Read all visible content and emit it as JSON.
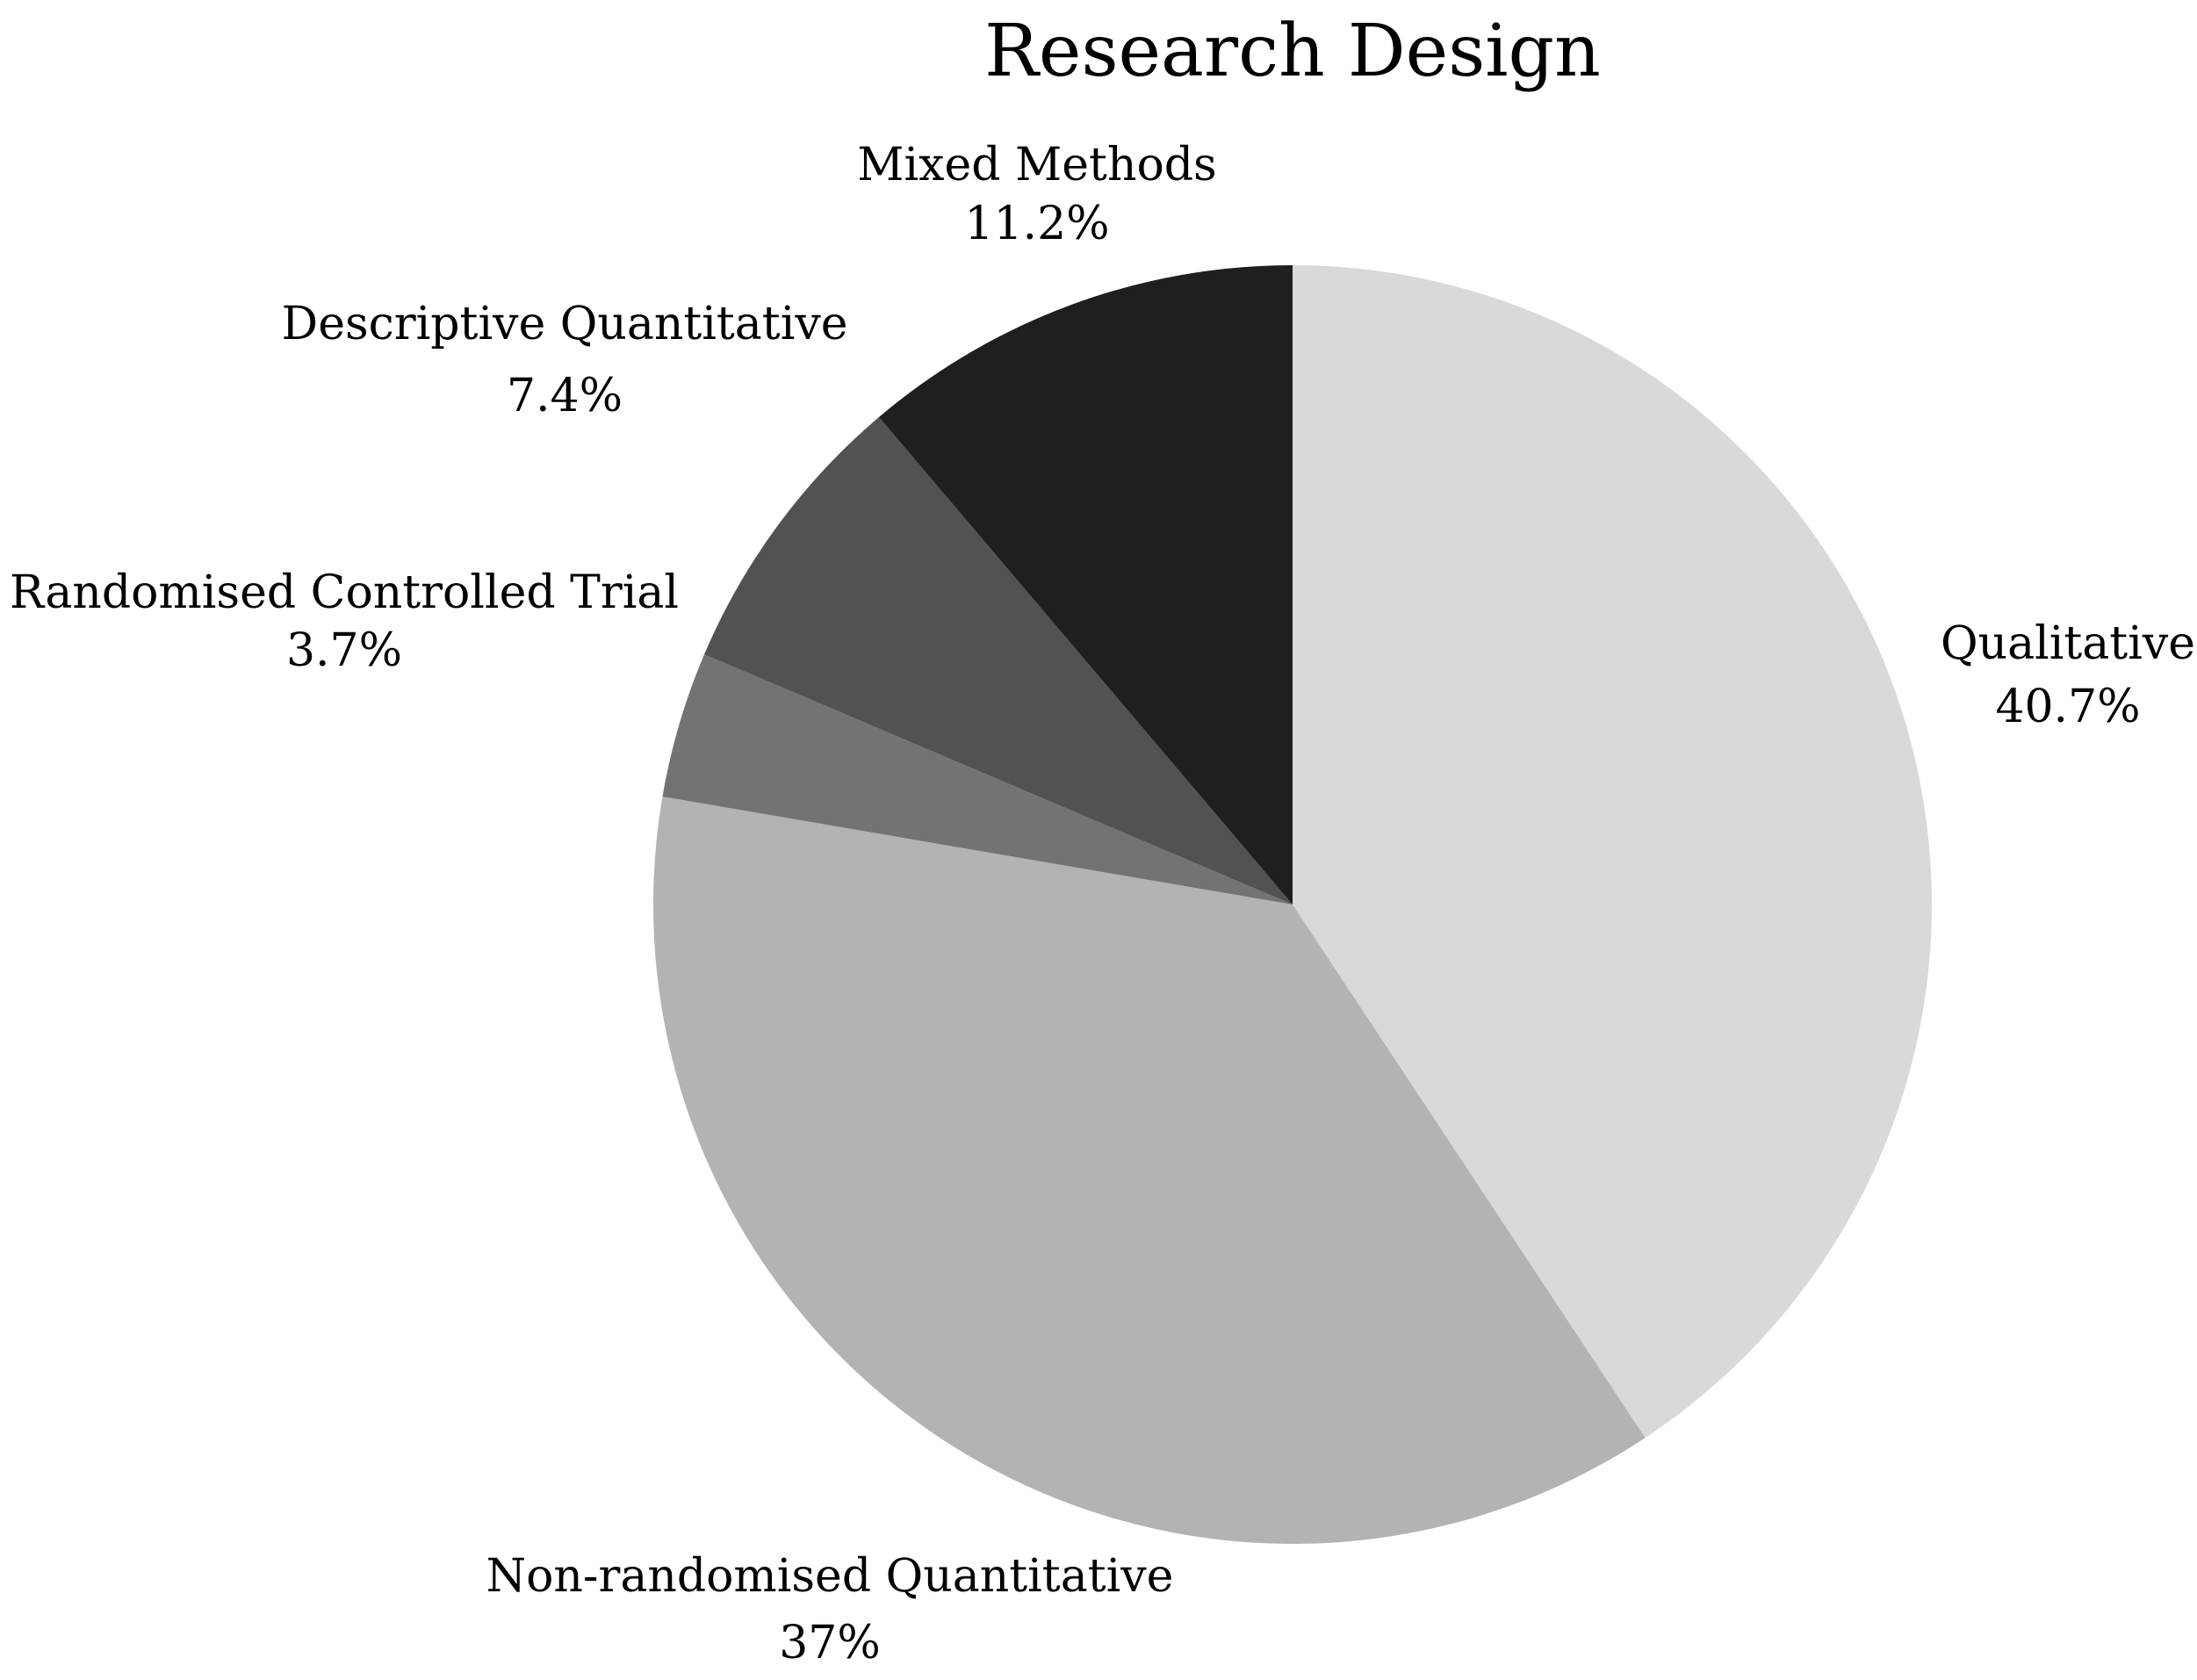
{
  "chart_data": {
    "type": "pie",
    "title": "Research Design",
    "start": "12 o'clock",
    "direction": "clockwise",
    "slices": [
      {
        "label": "Qualitative",
        "value": 40.7,
        "value_label": "40.7%",
        "color": "#d9d9d9"
      },
      {
        "label": "Non-randomised Quantitative",
        "value": 37.0,
        "value_label": "37%",
        "color": "#b3b3b3"
      },
      {
        "label": "Randomised Controlled Trial",
        "value": 3.7,
        "value_label": "3.7%",
        "color": "#737373"
      },
      {
        "label": "Descriptive Quantitative",
        "value": 7.4,
        "value_label": "7.4%",
        "color": "#525252"
      },
      {
        "label": "Mixed Methods",
        "value": 11.2,
        "value_label": "11.2%",
        "color": "#1f1f1f"
      }
    ]
  }
}
